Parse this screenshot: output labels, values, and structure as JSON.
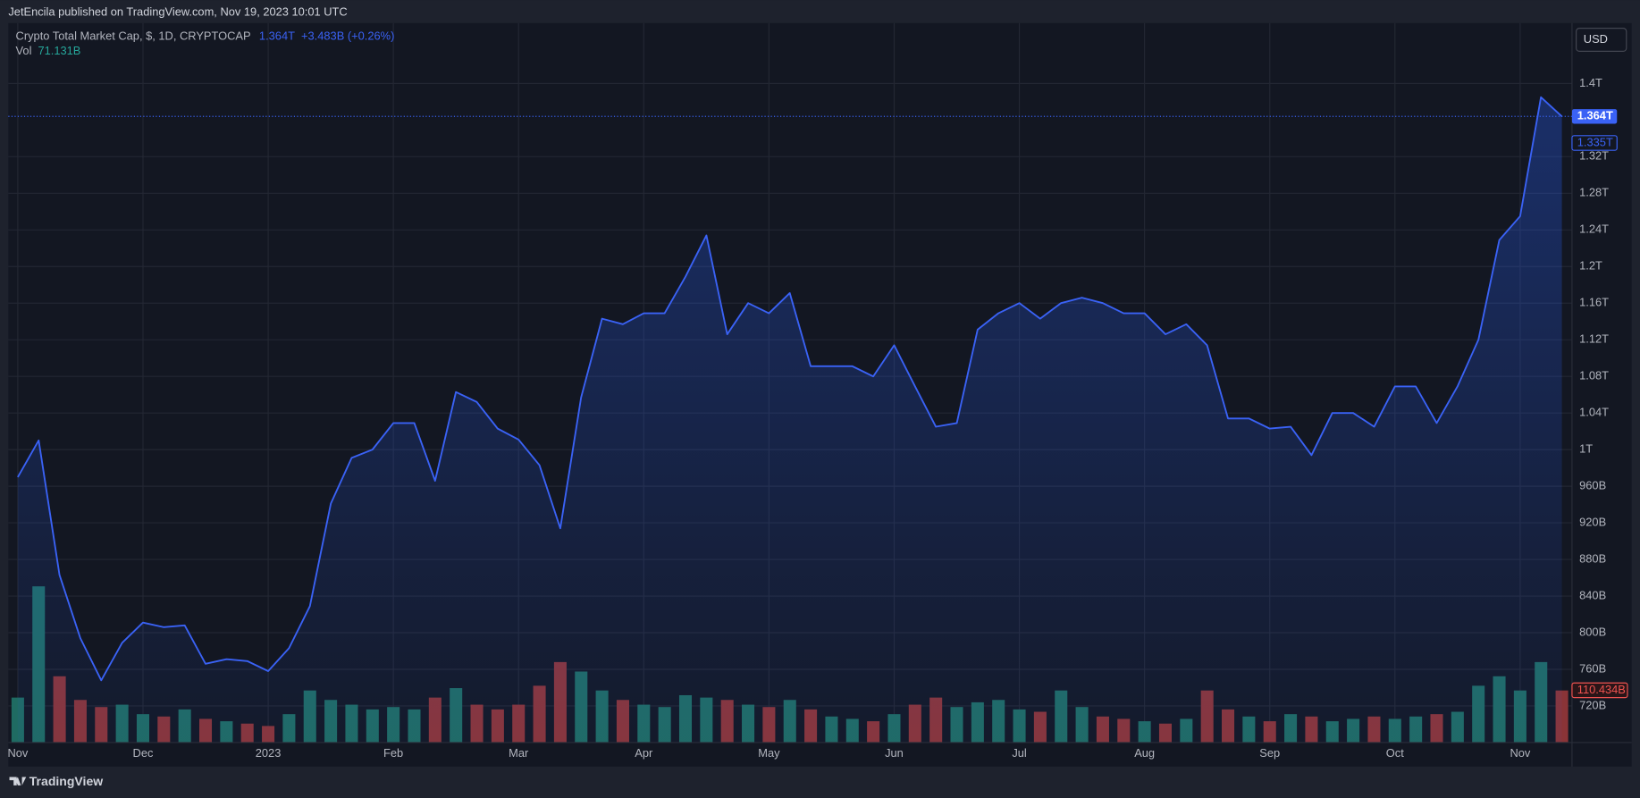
{
  "header": "JetEncila published on TradingView.com, Nov 19, 2023 10:01 UTC",
  "footer": "TradingView",
  "currency": "USD",
  "chart_data": {
    "type": "line",
    "categories": [
      "Nov",
      null,
      null,
      null,
      null,
      null,
      "Dec",
      null,
      null,
      null,
      null,
      null,
      "2023",
      null,
      null,
      null,
      null,
      null,
      "Feb",
      null,
      null,
      null,
      null,
      null,
      "Mar",
      null,
      null,
      null,
      null,
      null,
      "Apr",
      null,
      null,
      null,
      null,
      null,
      "May",
      null,
      null,
      null,
      null,
      null,
      "Jun",
      null,
      null,
      null,
      null,
      null,
      "Jul",
      null,
      null,
      null,
      null,
      null,
      "Aug",
      null,
      null,
      null,
      null,
      null,
      "Sep",
      null,
      null,
      null,
      null,
      null,
      "Oct",
      null,
      null,
      null,
      null,
      null,
      "Nov",
      null,
      null
    ],
    "series": [
      {
        "name": "Crypto Total Market Cap, $, 1D, CRYPTOCAP",
        "color": "#3a62f5",
        "values": [
          970,
          1010,
          863,
          794,
          748,
          789,
          811,
          806,
          808,
          766,
          771,
          769,
          758,
          783,
          829,
          941,
          991,
          1000,
          1029,
          1029,
          966,
          1063,
          1052,
          1023,
          1011,
          983,
          914,
          1057,
          1143,
          1137,
          1149,
          1149,
          1189,
          1234,
          1126,
          1160,
          1149,
          1171,
          1091,
          1091,
          1091,
          1080,
          1114,
          1069,
          1025,
          1029,
          1131,
          1149,
          1160,
          1143,
          1160,
          1166,
          1160,
          1149,
          1149,
          1126,
          1137,
          1114,
          1034,
          1034,
          1023,
          1025,
          994,
          1040,
          1040,
          1025,
          1069,
          1069,
          1029,
          1069,
          1120,
          1229,
          1255,
          1385,
          1364
        ]
      }
    ],
    "last_price": {
      "value": 1364,
      "label": "1.364T"
    },
    "change": "+3.483B (+0.26%)",
    "second_price": {
      "value": 1335,
      "label": "1.335T"
    },
    "volume": {
      "name": "Vol",
      "up_color": "#1f6b62",
      "down_color": "#8a3437",
      "values": [
        95,
        330,
        140,
        90,
        75,
        80,
        60,
        55,
        70,
        50,
        45,
        40,
        35,
        60,
        110,
        90,
        80,
        70,
        75,
        70,
        95,
        115,
        80,
        70,
        80,
        120,
        170,
        150,
        110,
        90,
        80,
        75,
        100,
        95,
        90,
        80,
        75,
        90,
        70,
        55,
        50,
        45,
        60,
        80,
        95,
        75,
        85,
        90,
        70,
        65,
        110,
        75,
        55,
        50,
        45,
        40,
        50,
        110,
        70,
        55,
        45,
        60,
        55,
        45,
        50,
        55,
        50,
        55,
        60,
        65,
        120,
        140,
        110,
        170,
        110
      ],
      "legend_value": {
        "value": 71.131,
        "label": "71.131B"
      },
      "axis_value": {
        "value": 110.434,
        "label": "110.434B"
      },
      "ylim": [
        0,
        1520
      ]
    },
    "ylim": [
      680,
      1466
    ],
    "yticks": [
      {
        "value": 1400,
        "label": "1.4T"
      },
      {
        "value": 1320,
        "label": "1.32T"
      },
      {
        "value": 1280,
        "label": "1.28T"
      },
      {
        "value": 1240,
        "label": "1.24T"
      },
      {
        "value": 1200,
        "label": "1.2T"
      },
      {
        "value": 1160,
        "label": "1.16T"
      },
      {
        "value": 1120,
        "label": "1.12T"
      },
      {
        "value": 1080,
        "label": "1.08T"
      },
      {
        "value": 1040,
        "label": "1.04T"
      },
      {
        "value": 1000,
        "label": "1T"
      },
      {
        "value": 960,
        "label": "960B"
      },
      {
        "value": 920,
        "label": "920B"
      },
      {
        "value": 880,
        "label": "880B"
      },
      {
        "value": 840,
        "label": "840B"
      },
      {
        "value": 800,
        "label": "800B"
      },
      {
        "value": 760,
        "label": "760B"
      },
      {
        "value": 720,
        "label": "720B"
      }
    ],
    "grid": true
  }
}
